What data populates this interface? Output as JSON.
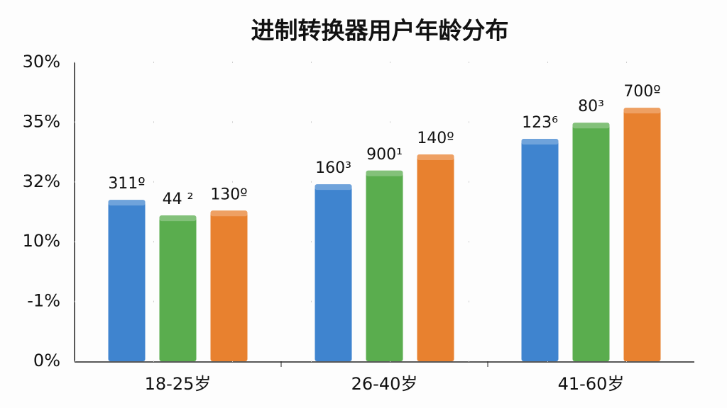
{
  "chart_data": {
    "type": "bar",
    "title": "进制转换器用户年龄分布",
    "categories": [
      "18-25岁",
      "26-40岁",
      "41-60岁"
    ],
    "series": [
      {
        "color": "#3f84cf",
        "values": [
          2.7,
          2.96,
          3.72
        ],
        "bar_labels": [
          "311º",
          "160³",
          "123⁶"
        ]
      },
      {
        "color": "#5aad4e",
        "values": [
          2.44,
          3.19,
          3.99
        ],
        "bar_labels": [
          "44 ²",
          "900¹",
          "80³"
        ]
      },
      {
        "color": "#e8812f",
        "values": [
          2.52,
          3.46,
          4.24
        ],
        "bar_labels": [
          "130º",
          "140º",
          "700º"
        ]
      }
    ],
    "ylim": [
      0,
      5
    ],
    "yticks": [
      {
        "value": 0,
        "label": "0%"
      },
      {
        "value": 1,
        "label": "-1%"
      },
      {
        "value": 2,
        "label": "10%"
      },
      {
        "value": 3,
        "label": "32%"
      },
      {
        "value": 4,
        "label": "35%"
      },
      {
        "value": 5,
        "label": "30%"
      }
    ],
    "grid": true
  }
}
